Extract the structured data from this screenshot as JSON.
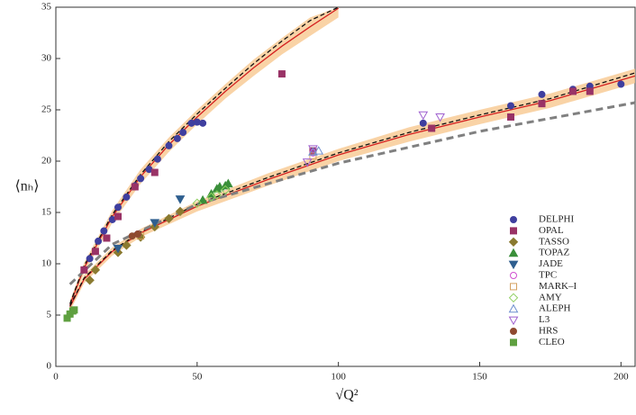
{
  "chart_data": {
    "type": "scatter",
    "x_label": "√Q²",
    "y_label": "⟨nₕ⟩",
    "xlim": [
      0,
      205
    ],
    "ylim": [
      0,
      35
    ],
    "xticks": [
      0,
      50,
      100,
      150,
      200
    ],
    "yticks": [
      0,
      5,
      10,
      15,
      20,
      25,
      30,
      35
    ],
    "curves": [
      {
        "color": "#d42020",
        "dash": false,
        "x": [
          5,
          10,
          20,
          30,
          40,
          50,
          60,
          70,
          80,
          90,
          100
        ],
        "values": [
          6,
          9.6,
          14.6,
          18.5,
          21.6,
          24.3,
          26.8,
          29.1,
          31.2,
          33.1,
          34.9
        ],
        "band_color": "#f8c890",
        "lower": [
          5.6,
          9.1,
          14,
          17.8,
          20.9,
          23.6,
          26.1,
          28.3,
          30.4,
          32.2,
          34
        ],
        "upper": [
          6.4,
          10.1,
          15.2,
          19.2,
          22.3,
          25,
          27.5,
          29.9,
          32,
          34,
          35
        ]
      },
      {
        "color": "#d42020",
        "dash": false,
        "x": [
          5,
          10,
          20,
          30,
          50,
          75,
          100,
          125,
          150,
          175,
          205
        ],
        "values": [
          5.8,
          8.5,
          11.2,
          13,
          15.6,
          18.2,
          20.6,
          22.6,
          24.3,
          25.9,
          28.3
        ],
        "band_color": "#f8c890",
        "lower": [
          5.4,
          8.1,
          10.8,
          12.6,
          15.1,
          17.6,
          20,
          21.9,
          23.6,
          25.2,
          27.6
        ],
        "upper": [
          6.2,
          8.9,
          11.6,
          13.4,
          16.1,
          18.8,
          21.2,
          23.3,
          25,
          26.6,
          29
        ]
      },
      {
        "color": "#111111",
        "dash": true,
        "x": [
          5,
          10,
          20,
          30,
          40,
          50,
          60,
          70,
          80,
          90,
          100
        ],
        "values": [
          6.1,
          9.8,
          14.8,
          18.7,
          21.9,
          24.6,
          27.1,
          29.5,
          31.7,
          33.7,
          35
        ]
      },
      {
        "color": "#111111",
        "dash": true,
        "x": [
          5,
          10,
          20,
          30,
          50,
          75,
          100,
          125,
          150,
          175,
          205
        ],
        "values": [
          5.9,
          8.6,
          11.3,
          13.1,
          15.8,
          18.4,
          20.8,
          22.8,
          24.5,
          26.1,
          28.6
        ]
      },
      {
        "color": "#808080",
        "dash": true,
        "x": [
          5,
          20,
          50,
          100,
          150,
          205
        ],
        "values": [
          8,
          11.9,
          15.8,
          19.8,
          22.9,
          25.7
        ]
      }
    ],
    "series": [
      {
        "name": "DELPHI",
        "color": "#3f3f9f",
        "marker": "circle",
        "filled": true,
        "x": [
          12,
          15,
          17,
          20,
          22,
          25,
          28,
          30,
          33,
          36,
          40,
          43,
          45,
          48,
          50,
          52,
          130,
          161,
          172,
          183,
          189,
          200
        ],
        "values": [
          10.5,
          12.2,
          13.2,
          14.3,
          15.5,
          16.5,
          17.6,
          18.3,
          19.2,
          20.2,
          21.5,
          22.2,
          22.8,
          23.7,
          23.8,
          23.7,
          23.7,
          25.4,
          26.5,
          27,
          27.3,
          27.5
        ]
      },
      {
        "name": "OPAL",
        "color": "#993366",
        "marker": "square",
        "filled": true,
        "x": [
          10,
          14,
          18,
          22,
          28,
          35,
          80,
          91,
          133,
          161,
          172,
          183,
          189
        ],
        "values": [
          9.4,
          11.2,
          12.5,
          14.6,
          17.5,
          18.9,
          28.5,
          21,
          23.2,
          24.3,
          25.6,
          26.8,
          26.8
        ]
      },
      {
        "name": "TASSO",
        "color": "#8a7a30",
        "marker": "diamond",
        "filled": true,
        "x": [
          12,
          14,
          22,
          25,
          30,
          35,
          40,
          44
        ],
        "values": [
          8.4,
          9.4,
          11.1,
          11.8,
          12.6,
          13.6,
          14.4,
          15.1
        ]
      },
      {
        "name": "TOPAZ",
        "color": "#3a8f3a",
        "marker": "triangle",
        "filled": true,
        "x": [
          52,
          55,
          57,
          58,
          60,
          61
        ],
        "values": [
          16.2,
          16.8,
          17.3,
          17.5,
          17.6,
          17.8
        ]
      },
      {
        "name": "JADE",
        "color": "#2f5f8f",
        "marker": "down",
        "filled": true,
        "x": [
          22,
          35,
          44
        ],
        "values": [
          11.5,
          14,
          16.3
        ]
      },
      {
        "name": "TPC",
        "color": "#d050d0",
        "marker": "circle",
        "filled": false,
        "x": [
          29,
          91
        ],
        "values": [
          12.9,
          20.8
        ]
      },
      {
        "name": "MARK–I",
        "color": "#d4a060",
        "marker": "square",
        "filled": false,
        "x": [
          30,
          91
        ],
        "values": [
          12.7,
          20.5
        ]
      },
      {
        "name": "AMY",
        "color": "#8fcf5f",
        "marker": "diamond",
        "filled": false,
        "x": [
          50,
          55,
          57,
          60
        ],
        "values": [
          15.9,
          16.5,
          16.7,
          17.2
        ]
      },
      {
        "name": "ALEPH",
        "color": "#6f8fcf",
        "marker": "triangle",
        "filled": false,
        "x": [
          91,
          93
        ],
        "values": [
          20.9,
          21
        ]
      },
      {
        "name": "L3",
        "color": "#9f60cf",
        "marker": "down",
        "filled": false,
        "x": [
          89,
          91,
          130,
          136
        ],
        "values": [
          19.9,
          21.2,
          24.5,
          24.3
        ]
      },
      {
        "name": "HRS",
        "color": "#8f4a30",
        "marker": "circle",
        "filled": true,
        "x": [
          27,
          29
        ],
        "values": [
          12.7,
          12.9
        ]
      },
      {
        "name": "CLEO",
        "color": "#5fa040",
        "marker": "square",
        "filled": true,
        "x": [
          4,
          5,
          6,
          6.5
        ],
        "values": [
          4.7,
          5.1,
          5.4,
          5.5
        ]
      }
    ]
  }
}
